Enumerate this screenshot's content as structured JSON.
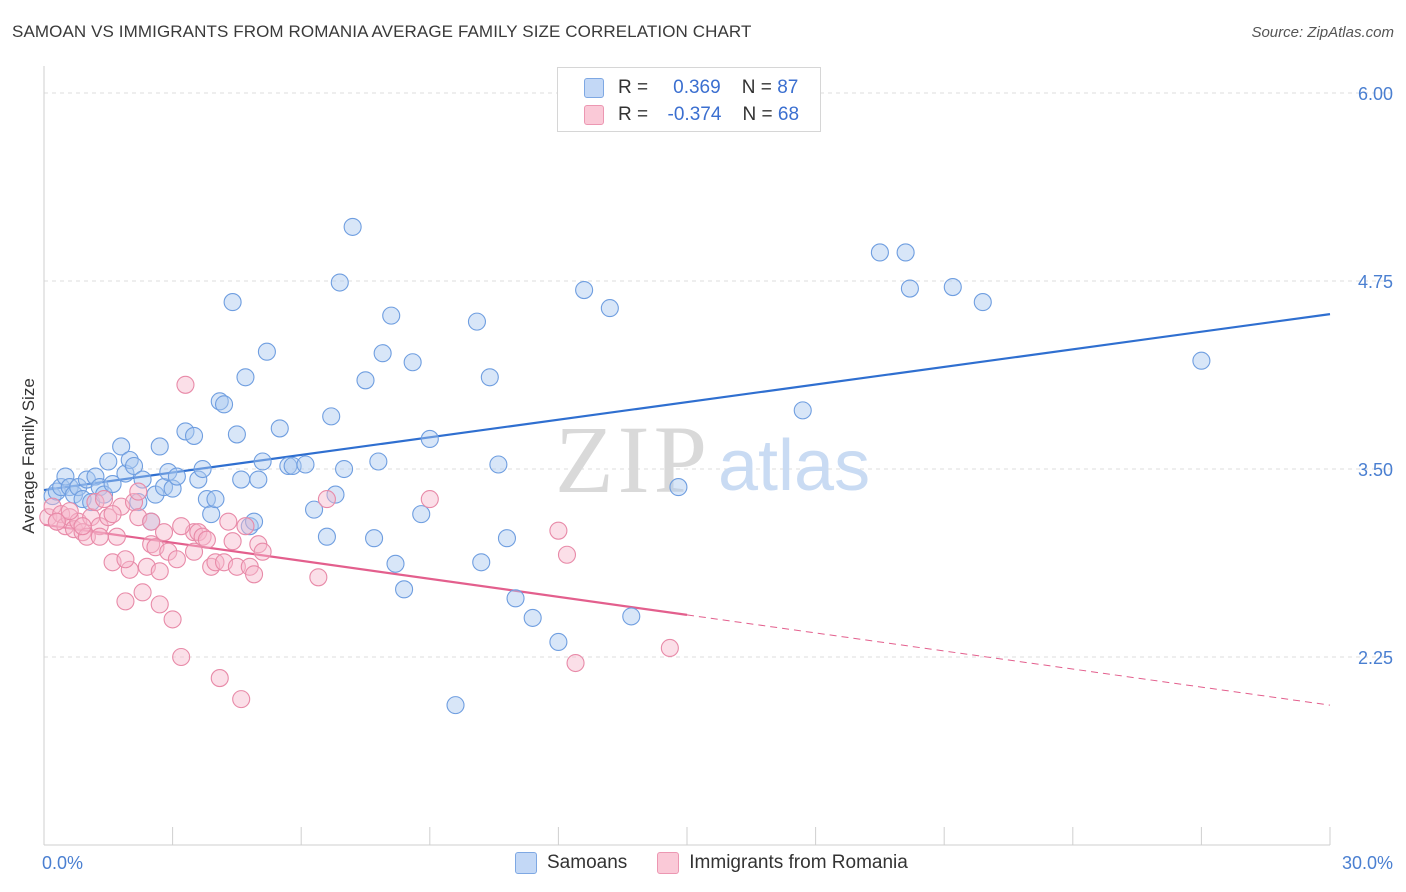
{
  "title": "SAMOAN VS IMMIGRANTS FROM ROMANIA AVERAGE FAMILY SIZE CORRELATION CHART",
  "source": "Source: ZipAtlas.com",
  "watermark": {
    "zip": "ZIP",
    "atlas": "atlas"
  },
  "legend": {
    "r_label": "R =",
    "n_label": "N =",
    "series": [
      {
        "r": "0.369",
        "n": "87",
        "color": "#a9c7f0",
        "stroke": "#6f9ee0"
      },
      {
        "r": "-0.374",
        "n": "68",
        "color": "#f7b8cb",
        "stroke": "#e88aa8"
      }
    ]
  },
  "bottom_legend": [
    "Samoans",
    "Immigrants from Romania"
  ],
  "chart_data": {
    "type": "scatter",
    "title": "SAMOAN VS IMMIGRANTS FROM ROMANIA AVERAGE FAMILY SIZE CORRELATION CHART",
    "xlabel": "",
    "ylabel": "Average Family Size",
    "xlim": [
      0,
      30
    ],
    "ylim": [
      1.0,
      6.1
    ],
    "x_tick_labels": [
      "0.0%",
      "30.0%"
    ],
    "y_ticks": [
      2.25,
      3.5,
      4.75,
      6.0
    ],
    "y_tick_labels": [
      "2.25",
      "3.50",
      "4.75",
      "6.00"
    ],
    "grid": true,
    "series": [
      {
        "name": "Samoans",
        "color": "#a9c7f0",
        "line_color": "#2f6fd0",
        "trend": {
          "x": [
            0,
            30
          ],
          "y": [
            3.36,
            4.53
          ],
          "dashed_from": null
        },
        "points": [
          [
            0.2,
            3.32
          ],
          [
            0.3,
            3.35
          ],
          [
            0.4,
            3.38
          ],
          [
            0.5,
            3.45
          ],
          [
            0.6,
            3.38
          ],
          [
            0.7,
            3.33
          ],
          [
            0.8,
            3.38
          ],
          [
            0.9,
            3.3
          ],
          [
            1.0,
            3.43
          ],
          [
            1.1,
            3.28
          ],
          [
            1.2,
            3.45
          ],
          [
            1.3,
            3.38
          ],
          [
            1.4,
            3.33
          ],
          [
            1.5,
            3.55
          ],
          [
            1.6,
            3.4
          ],
          [
            1.8,
            3.65
          ],
          [
            1.9,
            3.47
          ],
          [
            2.0,
            3.56
          ],
          [
            2.1,
            3.52
          ],
          [
            2.2,
            3.28
          ],
          [
            2.3,
            3.43
          ],
          [
            2.5,
            3.15
          ],
          [
            2.6,
            3.33
          ],
          [
            2.7,
            3.65
          ],
          [
            2.8,
            3.38
          ],
          [
            2.9,
            3.48
          ],
          [
            3.0,
            3.37
          ],
          [
            3.1,
            3.45
          ],
          [
            3.3,
            3.75
          ],
          [
            3.5,
            3.72
          ],
          [
            3.6,
            3.43
          ],
          [
            3.7,
            3.5
          ],
          [
            3.8,
            3.3
          ],
          [
            3.9,
            3.2
          ],
          [
            4.0,
            3.3
          ],
          [
            4.1,
            3.95
          ],
          [
            4.2,
            3.93
          ],
          [
            4.4,
            4.61
          ],
          [
            4.5,
            3.73
          ],
          [
            4.6,
            3.43
          ],
          [
            4.7,
            4.11
          ],
          [
            4.8,
            3.12
          ],
          [
            4.9,
            3.15
          ],
          [
            5.0,
            3.43
          ],
          [
            5.1,
            3.55
          ],
          [
            5.2,
            4.28
          ],
          [
            5.5,
            3.77
          ],
          [
            5.7,
            3.52
          ],
          [
            5.8,
            3.52
          ],
          [
            6.1,
            3.53
          ],
          [
            6.3,
            3.23
          ],
          [
            6.6,
            3.05
          ],
          [
            6.7,
            3.85
          ],
          [
            6.8,
            3.33
          ],
          [
            6.9,
            4.74
          ],
          [
            7.0,
            3.5
          ],
          [
            7.2,
            5.11
          ],
          [
            7.5,
            4.09
          ],
          [
            7.7,
            3.04
          ],
          [
            7.8,
            3.55
          ],
          [
            7.9,
            4.27
          ],
          [
            8.1,
            4.52
          ],
          [
            8.2,
            2.87
          ],
          [
            8.4,
            2.7
          ],
          [
            8.6,
            4.21
          ],
          [
            8.8,
            3.2
          ],
          [
            9.0,
            3.7
          ],
          [
            9.6,
            1.93
          ],
          [
            10.1,
            4.48
          ],
          [
            10.2,
            2.88
          ],
          [
            10.4,
            4.11
          ],
          [
            10.6,
            3.53
          ],
          [
            10.8,
            3.04
          ],
          [
            11.0,
            2.64
          ],
          [
            11.4,
            2.51
          ],
          [
            12.0,
            2.35
          ],
          [
            12.6,
            4.69
          ],
          [
            13.2,
            4.57
          ],
          [
            13.7,
            2.52
          ],
          [
            14.8,
            3.38
          ],
          [
            17.7,
            3.89
          ],
          [
            19.5,
            4.94
          ],
          [
            20.1,
            4.94
          ],
          [
            20.2,
            4.7
          ],
          [
            21.2,
            4.71
          ],
          [
            21.9,
            4.61
          ],
          [
            27.0,
            4.22
          ]
        ]
      },
      {
        "name": "Immigrants from Romania",
        "color": "#f7b8cb",
        "line_color": "#e35f8d",
        "trend": {
          "x": [
            0,
            30
          ],
          "y": [
            3.13,
            1.93
          ],
          "dashed_from": 15.0
        },
        "points": [
          [
            0.1,
            3.18
          ],
          [
            0.2,
            3.25
          ],
          [
            0.3,
            3.15
          ],
          [
            0.4,
            3.2
          ],
          [
            0.5,
            3.12
          ],
          [
            0.6,
            3.18
          ],
          [
            0.7,
            3.1
          ],
          [
            0.8,
            3.15
          ],
          [
            0.9,
            3.08
          ],
          [
            1.0,
            3.05
          ],
          [
            1.1,
            3.18
          ],
          [
            1.2,
            3.28
          ],
          [
            1.3,
            3.12
          ],
          [
            1.4,
            3.3
          ],
          [
            1.5,
            3.18
          ],
          [
            1.6,
            2.88
          ],
          [
            1.7,
            3.05
          ],
          [
            1.8,
            3.25
          ],
          [
            1.9,
            2.62
          ],
          [
            2.0,
            2.83
          ],
          [
            2.1,
            3.28
          ],
          [
            2.2,
            3.18
          ],
          [
            2.3,
            2.68
          ],
          [
            2.4,
            2.85
          ],
          [
            2.5,
            3.0
          ],
          [
            2.6,
            2.98
          ],
          [
            2.7,
            2.82
          ],
          [
            2.8,
            3.08
          ],
          [
            2.9,
            2.95
          ],
          [
            3.0,
            2.5
          ],
          [
            3.1,
            2.9
          ],
          [
            3.2,
            2.25
          ],
          [
            3.3,
            4.06
          ],
          [
            3.5,
            3.08
          ],
          [
            3.6,
            3.08
          ],
          [
            3.7,
            3.05
          ],
          [
            3.8,
            3.03
          ],
          [
            3.9,
            2.85
          ],
          [
            4.0,
            2.88
          ],
          [
            4.1,
            2.11
          ],
          [
            4.2,
            2.88
          ],
          [
            4.4,
            3.02
          ],
          [
            4.5,
            2.85
          ],
          [
            4.6,
            1.97
          ],
          [
            4.7,
            3.12
          ],
          [
            4.8,
            2.85
          ],
          [
            4.9,
            2.8
          ],
          [
            5.0,
            3.0
          ],
          [
            5.1,
            2.95
          ],
          [
            6.4,
            2.78
          ],
          [
            6.6,
            3.3
          ],
          [
            9.0,
            3.3
          ],
          [
            12.0,
            3.09
          ],
          [
            12.2,
            2.93
          ],
          [
            12.4,
            2.21
          ],
          [
            14.6,
            2.31
          ],
          [
            0.3,
            3.15
          ],
          [
            0.6,
            3.22
          ],
          [
            0.9,
            3.12
          ],
          [
            1.3,
            3.05
          ],
          [
            1.6,
            3.2
          ],
          [
            2.2,
            3.35
          ],
          [
            2.5,
            3.15
          ],
          [
            3.2,
            3.12
          ],
          [
            4.3,
            3.15
          ],
          [
            1.9,
            2.9
          ],
          [
            2.7,
            2.6
          ],
          [
            3.5,
            2.95
          ]
        ]
      }
    ]
  }
}
